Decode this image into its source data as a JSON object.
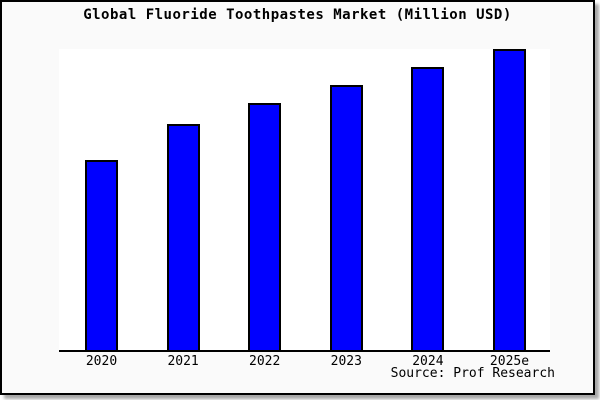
{
  "figure": {
    "title": "Global Fluoride Toothpastes Market (Million USD)",
    "source": "Source: Prof Research"
  },
  "chart_data": {
    "type": "bar",
    "title": "Global Fluoride Toothpastes Market (Million USD)",
    "categories": [
      "2020",
      "2021",
      "2022",
      "2023",
      "2024",
      "2025e"
    ],
    "values": [
      63,
      75,
      82,
      88,
      94,
      100
    ],
    "values_note": "No y-axis scale is shown in the image; values are relative bar heights as percent of the tallest (2025e) bar.",
    "xlabel": "",
    "ylabel": "",
    "ylim": [
      0,
      100
    ],
    "grid": false,
    "legend": "none",
    "source": "Source: Prof Research",
    "bar_color": "#0000ff",
    "bar_border_color": "#000000",
    "plot_background": "#ffffff",
    "figure_background": "#fafafa"
  }
}
